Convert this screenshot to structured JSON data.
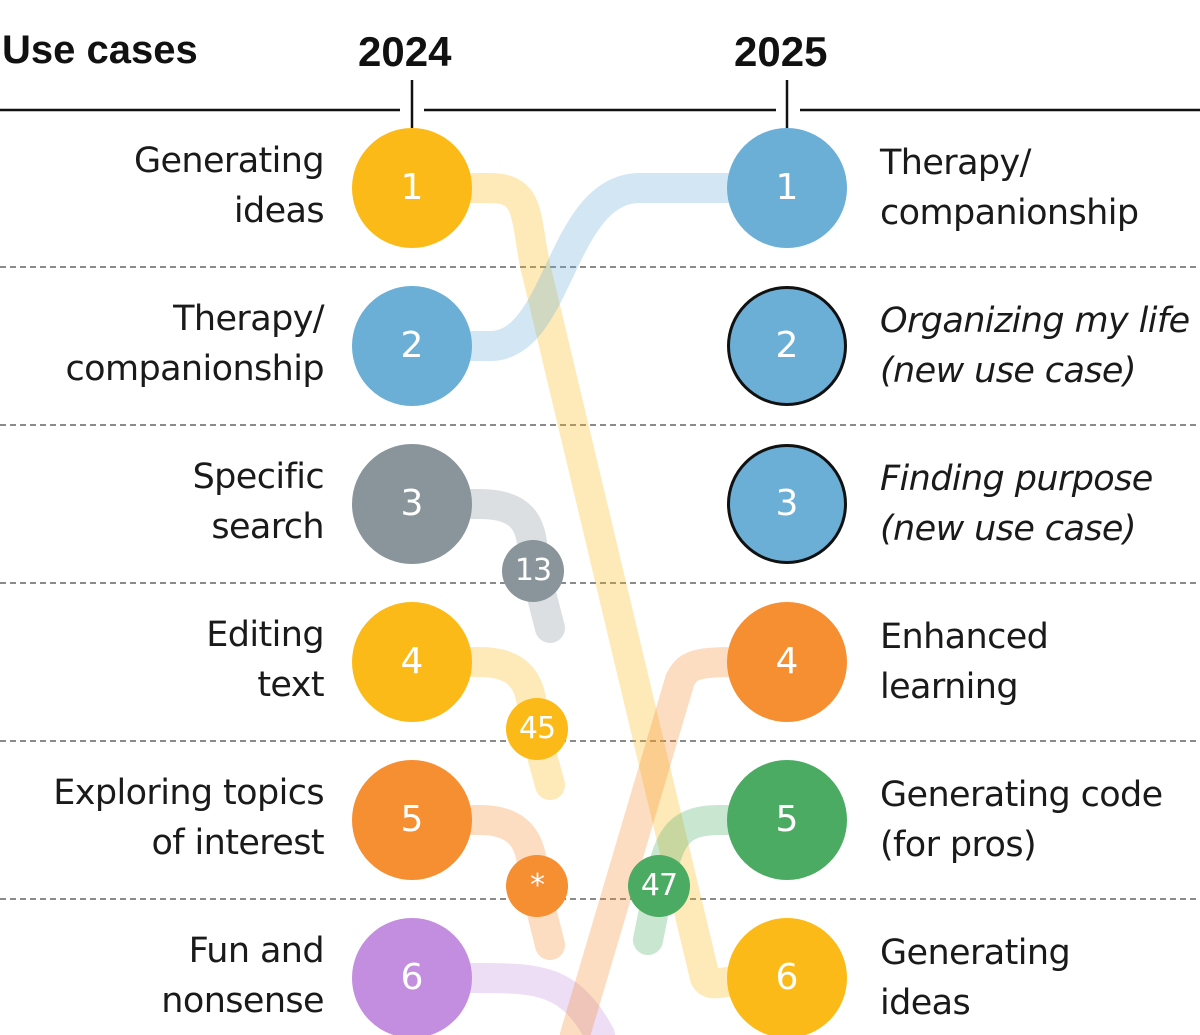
{
  "chart_data": {
    "type": "slope",
    "title": "Use cases",
    "x": [
      "2024",
      "2025"
    ],
    "series": [
      {
        "name": "Generating ideas",
        "rank_2024": 1,
        "rank_2025": 6,
        "color": "#FBBA17"
      },
      {
        "name": "Therapy/\ncompanionship",
        "rank_2024": 2,
        "rank_2025": 1,
        "color": "#6BAED6"
      },
      {
        "name": "Specific\nsearch",
        "rank_2024": 3,
        "rank_2025": 13,
        "color": "#8A959B"
      },
      {
        "name": "Editing\ntext",
        "rank_2024": 4,
        "rank_2025": 45,
        "color": "#FBBA17"
      },
      {
        "name": "Exploring topics\nof interest",
        "rank_2024": 5,
        "rank_2025": "*",
        "color": "#F68E32"
      },
      {
        "name": "Fun and\nnonsense",
        "rank_2024": 6,
        "rank_2025": null,
        "color": "#C38EDF"
      },
      {
        "name": "Organizing my life\n(new use case)",
        "rank_2024": null,
        "rank_2025": 2,
        "color": "#6BAED6"
      },
      {
        "name": "Finding purpose\n(new use case)",
        "rank_2024": null,
        "rank_2025": 3,
        "color": "#6BAED6"
      },
      {
        "name": "Enhanced\nlearning",
        "rank_2024": null,
        "rank_2025": 4,
        "color": "#F68E32"
      },
      {
        "name": "Generating code\n(for pros)",
        "rank_2024": 47,
        "rank_2025": 5,
        "color": "#4CAB62"
      }
    ],
    "left_labels": [
      "Generating\nideas",
      "Therapy/\ncompanionship",
      "Specific\nsearch",
      "Editing\ntext",
      "Exploring topics\nof interest",
      "Fun and\nnonsense"
    ],
    "right_labels": [
      "Therapy/\ncompanionship",
      "Organizing my life\n(new use case)",
      "Finding purpose\n(new use case)",
      "Enhanced\nlearning",
      "Generating code\n(for pros)",
      "Generating\nideas"
    ],
    "left_colors": [
      "#FBBA17",
      "#6BAED6",
      "#8A959B",
      "#FBBA17",
      "#F68E32",
      "#C38EDF"
    ],
    "right_colors": [
      "#6BAED6",
      "#6BAED6",
      "#6BAED6",
      "#F68E32",
      "#4CAB62",
      "#FBBA17"
    ],
    "right_new": [
      false,
      true,
      true,
      false,
      false,
      false
    ],
    "sub_ranks": [
      {
        "label": "13",
        "color": "#8A959B"
      },
      {
        "label": "45",
        "color": "#FBBA17"
      },
      {
        "label": "*",
        "color": "#F68E32"
      },
      {
        "label": "47",
        "color": "#4CAB62"
      }
    ],
    "grid": true
  }
}
